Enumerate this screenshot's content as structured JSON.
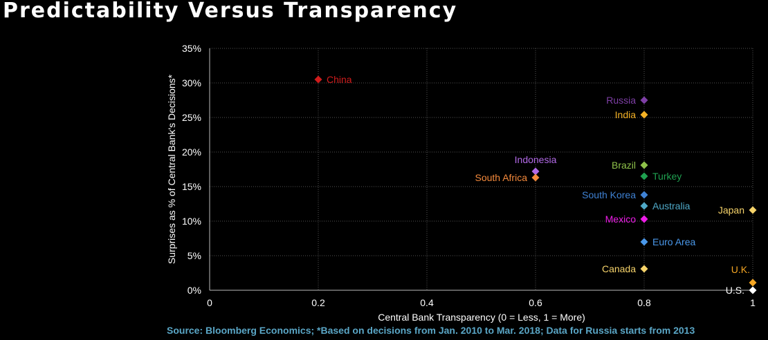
{
  "title": "Predictability Versus Transparency",
  "source": "Source: Bloomberg Economics; *Based on decisions from Jan. 2010 to Mar. 2018; Data for Russia starts from 2013",
  "chart_data": {
    "type": "scatter",
    "xlabel": "Central Bank Transparency (0 = Less, 1 = More)",
    "ylabel": "Surprises as % of Central Bank's Decisions*",
    "xlim": [
      0,
      1
    ],
    "ylim": [
      0,
      35
    ],
    "xticks": [
      0,
      0.2,
      0.4,
      0.6,
      0.8,
      1
    ],
    "xtick_labels": [
      "0",
      "0.2",
      "0.4",
      "0.6",
      "0.8",
      "1"
    ],
    "yticks": [
      0,
      5,
      10,
      15,
      20,
      25,
      30,
      35
    ],
    "ytick_labels": [
      "0%",
      "5%",
      "10%",
      "15%",
      "20%",
      "25%",
      "30%",
      "35%"
    ],
    "grid": true,
    "points": [
      {
        "label": "China",
        "x": 0.2,
        "y": 30.5,
        "color": "#d01c1c",
        "label_pos": "right"
      },
      {
        "label": "Russia",
        "x": 0.8,
        "y": 27.5,
        "color": "#7e3fa6",
        "label_pos": "left"
      },
      {
        "label": "India",
        "x": 0.8,
        "y": 25.4,
        "color": "#f5b225",
        "label_pos": "left"
      },
      {
        "label": "Indonesia",
        "x": 0.6,
        "y": 17.2,
        "color": "#b36ae8",
        "label_pos": "above"
      },
      {
        "label": "South Africa",
        "x": 0.6,
        "y": 16.3,
        "color": "#f58a3c",
        "label_pos": "left"
      },
      {
        "label": "Brazil",
        "x": 0.8,
        "y": 18.1,
        "color": "#8fc24a",
        "label_pos": "left"
      },
      {
        "label": "Turkey",
        "x": 0.8,
        "y": 16.5,
        "color": "#1fa050",
        "label_pos": "right"
      },
      {
        "label": "South Korea",
        "x": 0.8,
        "y": 13.8,
        "color": "#3f82d4",
        "label_pos": "left"
      },
      {
        "label": "Australia",
        "x": 0.8,
        "y": 12.2,
        "color": "#4fa9c8",
        "label_pos": "right"
      },
      {
        "label": "Mexico",
        "x": 0.8,
        "y": 10.3,
        "color": "#ee1de8",
        "label_pos": "left"
      },
      {
        "label": "Euro Area",
        "x": 0.8,
        "y": 7.0,
        "color": "#4a98ea",
        "label_pos": "right"
      },
      {
        "label": "Canada",
        "x": 0.8,
        "y": 3.1,
        "color": "#f6d36a",
        "label_pos": "left"
      },
      {
        "label": "Japan",
        "x": 1.0,
        "y": 11.6,
        "color": "#f6d36a",
        "label_pos": "left"
      },
      {
        "label": "U.K.",
        "x": 1.0,
        "y": 1.1,
        "color": "#f5a623",
        "label_pos": "above"
      },
      {
        "label": "U.S.",
        "x": 1.0,
        "y": 0.0,
        "color": "#ffffff",
        "label_pos": "left"
      }
    ]
  }
}
